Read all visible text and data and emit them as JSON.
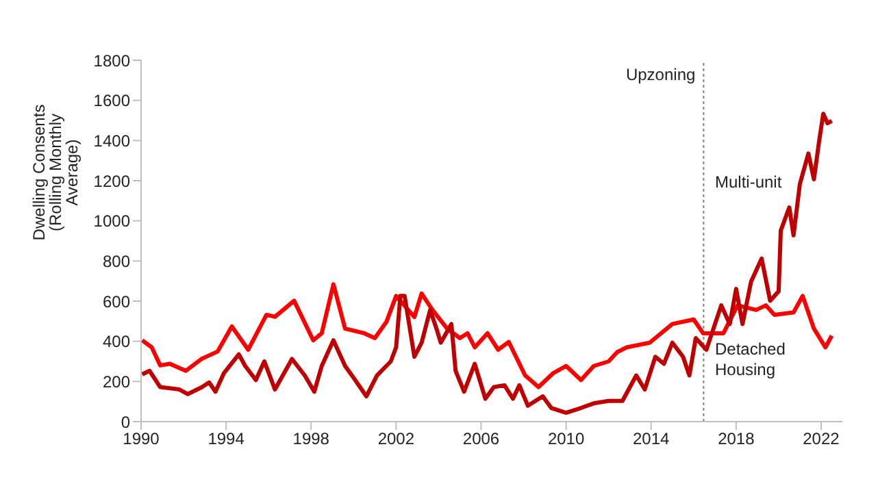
{
  "chart_data": {
    "type": "line",
    "ylabel": "Dwelling Consents (Rolling Monthly Average)",
    "xlim": [
      1990,
      2023
    ],
    "xticks": [
      1990,
      1994,
      1998,
      2002,
      2006,
      2010,
      2014,
      2018,
      2022
    ],
    "ylim": [
      0,
      1800
    ],
    "yticks": [
      0,
      200,
      400,
      600,
      800,
      1000,
      1200,
      1400,
      1600,
      1800
    ],
    "grid": false,
    "legend": false,
    "marker": "none",
    "line_style": "solid",
    "series": [
      {
        "color": "#ff0000",
        "x": [
          1990.05,
          1990.5,
          1990.9,
          1991.35,
          1992.1,
          1992.87,
          1993.6,
          1994.27,
          1995.04,
          1995.9,
          1996.3,
          1997.2,
          1998.1,
          1998.5,
          1999.05,
          1999.6,
          2000.5,
          2001.0,
          2001.55,
          2002.0,
          2002.86,
          2003.2,
          2003.7,
          2004.4,
          2005.0,
          2005.36,
          2005.7,
          2006.3,
          2006.8,
          2007.3,
          2008.07,
          2008.7,
          2009.4,
          2010.0,
          2010.7,
          2011.3,
          2012.0,
          2012.4,
          2012.85,
          2013.93,
          2015.0,
          2016.0,
          2016.45,
          2017.4,
          2018.07,
          2018.94,
          2019.4,
          2019.8,
          2020.7,
          2021.13,
          2021.66,
          2022.2,
          2022.5
        ],
        "values": [
          405,
          370,
          280,
          288,
          253,
          314,
          349,
          474,
          358,
          532,
          522,
          602,
          405,
          440,
          684,
          463,
          440,
          416,
          498,
          626,
          521,
          638,
          558,
          463,
          416,
          440,
          370,
          440,
          358,
          397,
          230,
          172,
          242,
          277,
          207,
          277,
          300,
          346,
          370,
          393,
          486,
          509,
          440,
          440,
          579,
          556,
          579,
          532,
          544,
          626,
          463,
          370,
          428
        ]
      },
      {
        "color": "#c00000",
        "x": [
          1990.05,
          1990.4,
          1990.9,
          1991.8,
          1992.2,
          1992.87,
          1993.2,
          1993.5,
          1993.9,
          1994.6,
          1994.9,
          1995.4,
          1995.8,
          1996.3,
          1997.1,
          1997.7,
          1998.15,
          1998.5,
          1999.05,
          1999.6,
          2000.0,
          2000.6,
          2001.1,
          2001.75,
          2002.0,
          2002.2,
          2002.4,
          2002.86,
          2003.2,
          2003.6,
          2003.9,
          2004.1,
          2004.6,
          2004.8,
          2005.2,
          2005.7,
          2006.2,
          2006.6,
          2007.1,
          2007.5,
          2007.8,
          2008.2,
          2008.9,
          2009.3,
          2010.0,
          2010.7,
          2011.3,
          2012.0,
          2012.65,
          2013.3,
          2013.7,
          2014.2,
          2014.6,
          2015.0,
          2015.5,
          2015.8,
          2016.1,
          2016.6,
          2017.3,
          2017.7,
          2018.0,
          2018.3,
          2018.7,
          2019.2,
          2019.6,
          2020.0,
          2020.1,
          2020.5,
          2020.7,
          2021.0,
          2021.4,
          2021.66,
          2021.9,
          2022.1,
          2022.3,
          2022.5
        ],
        "values": [
          235,
          253,
          172,
          160,
          137,
          172,
          195,
          149,
          242,
          335,
          277,
          207,
          300,
          160,
          312,
          230,
          149,
          277,
          405,
          277,
          218,
          126,
          230,
          300,
          370,
          626,
          626,
          323,
          393,
          556,
          463,
          393,
          486,
          253,
          149,
          288,
          114,
          172,
          181,
          114,
          181,
          79,
          126,
          68,
          44,
          68,
          91,
          103,
          103,
          230,
          160,
          323,
          288,
          393,
          323,
          230,
          416,
          358,
          579,
          486,
          661,
          486,
          696,
          812,
          602,
          649,
          951,
          1067,
          928,
          1184,
          1335,
          1207,
          1393,
          1533,
          1486,
          1498
        ]
      }
    ],
    "ref_lines": [
      {
        "axis": "x",
        "value": 2016.47,
        "label": "Upzoning",
        "color": "#808080",
        "line_style": "dotted"
      }
    ],
    "annotations": [
      "Multi-unit",
      "Detached Housing"
    ]
  }
}
